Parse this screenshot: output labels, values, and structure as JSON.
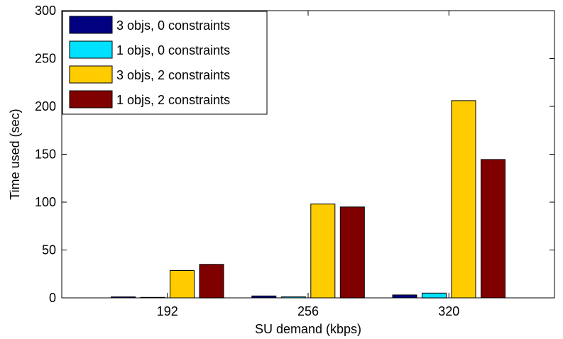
{
  "chart_data": {
    "type": "bar",
    "categories": [
      "192",
      "256",
      "320"
    ],
    "series": [
      {
        "name": "3 objs, 0 constraints",
        "color": "#000080",
        "values": [
          1,
          2,
          3
        ]
      },
      {
        "name": "1 objs, 0 constraints",
        "color": "#00E0FF",
        "values": [
          0.5,
          1,
          5
        ]
      },
      {
        "name": "3 objs, 2 constraints",
        "color": "#FFCC00",
        "values": [
          28.5,
          98,
          206
        ]
      },
      {
        "name": "1 objs, 2 constraints",
        "color": "#800000",
        "values": [
          35,
          95,
          144.5
        ]
      }
    ],
    "xlabel": "SU demand (kbps)",
    "ylabel": "Time used (sec)",
    "ylim": [
      0,
      300
    ],
    "yticks": [
      "0",
      "50",
      "100",
      "150",
      "200",
      "250",
      "300"
    ],
    "grid": false,
    "legend_position": "top-left"
  }
}
